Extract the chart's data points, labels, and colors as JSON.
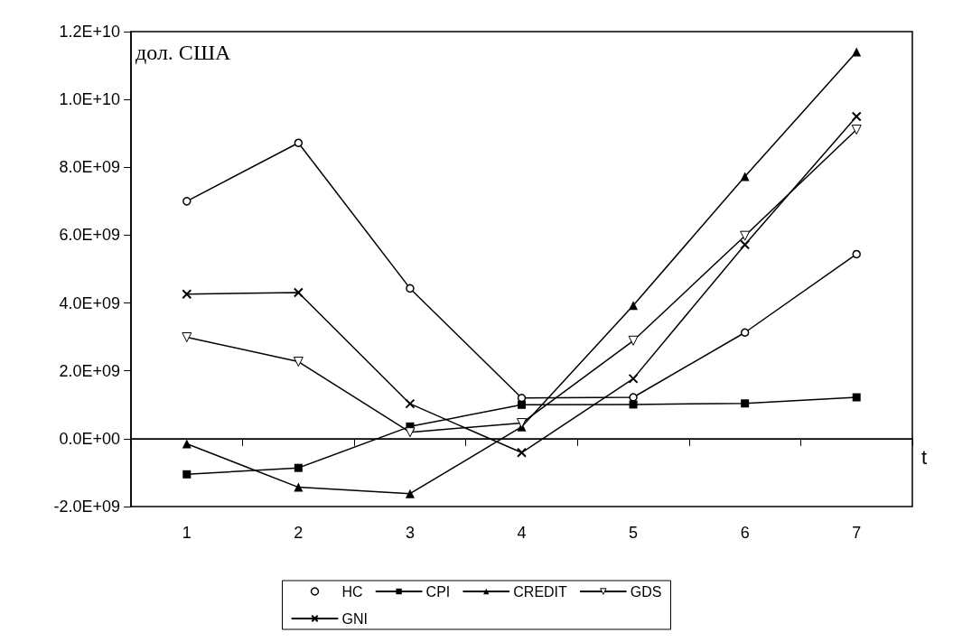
{
  "chart_data": {
    "type": "line",
    "ylabel": "дол. США",
    "xlabel": "t",
    "categories": [
      "1",
      "2",
      "3",
      "4",
      "5",
      "6",
      "7"
    ],
    "series": [
      {
        "name": "HC",
        "color": "#000000",
        "marker": "circle",
        "values": [
          7000000000,
          8720000000,
          4430000000,
          1200000000,
          1220000000,
          3130000000,
          5440000000
        ]
      },
      {
        "name": "CPI",
        "color": "#000000",
        "marker": "square",
        "values": [
          -1050000000,
          -860000000,
          360000000,
          1000000000,
          1010000000,
          1040000000,
          1220000000
        ]
      },
      {
        "name": "CREDIT",
        "color": "#000000",
        "marker": "triangle",
        "values": [
          -150000000,
          -1430000000,
          -1620000000,
          350000000,
          3930000000,
          7730000000,
          11400000000
        ]
      },
      {
        "name": "GDS",
        "color": "#000000",
        "marker": "triangle-down",
        "values": [
          2990000000,
          2270000000,
          190000000,
          460000000,
          2890000000,
          5980000000,
          9110000000
        ]
      },
      {
        "name": "GNI",
        "color": "#000000",
        "marker": "cross",
        "values": [
          4260000000,
          4310000000,
          1030000000,
          -410000000,
          1770000000,
          5720000000,
          9500000000
        ]
      }
    ],
    "ylim": [
      -2000000000,
      12000000000
    ],
    "yticks": [
      {
        "value": -2000000000,
        "label": "-2.0E+09"
      },
      {
        "value": 0,
        "label": "0.0E+00"
      },
      {
        "value": 2000000000,
        "label": "2.0E+09"
      },
      {
        "value": 4000000000,
        "label": "4.0E+09"
      },
      {
        "value": 6000000000,
        "label": "6.0E+09"
      },
      {
        "value": 8000000000,
        "label": "8.0E+09"
      },
      {
        "value": 10000000000,
        "label": "1.0E+10"
      },
      {
        "value": 12000000000,
        "label": "1.2E+10"
      }
    ],
    "ref_lines": [
      {
        "axis": "y",
        "value": 0,
        "color": "#000000"
      }
    ],
    "grid": false,
    "legend": "bottom",
    "line_style": "solid"
  }
}
